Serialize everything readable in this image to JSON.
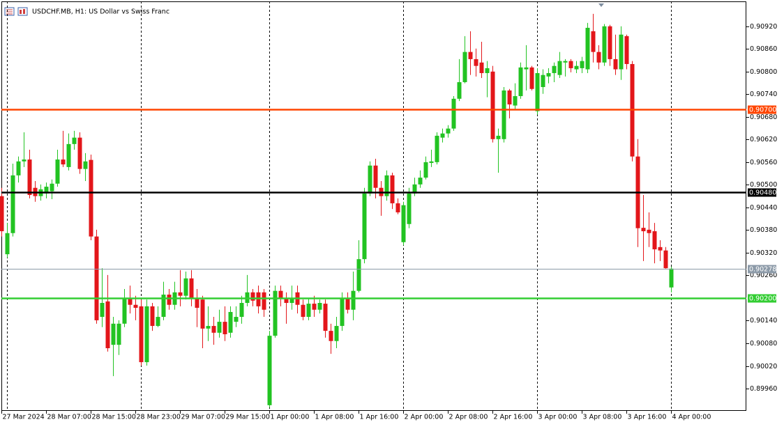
{
  "chart_data": {
    "type": "candlestick",
    "title": "USDCHF.MB, H1:  US Dollar vs Swiss Franc",
    "categories": [
      "27 Mar 2024",
      null,
      null,
      null,
      null,
      null,
      null,
      null,
      "28 Mar 07:00",
      null,
      null,
      null,
      null,
      null,
      null,
      null,
      "28 Mar 15:00",
      null,
      null,
      null,
      null,
      null,
      null,
      null,
      "28 Mar 23:00",
      null,
      null,
      null,
      null,
      null,
      null,
      null,
      "29 Mar 07:00",
      null,
      null,
      null,
      null,
      null,
      null,
      null,
      "29 Mar 15:00",
      null,
      null,
      null,
      null,
      null,
      null,
      null,
      "1 Apr 00:00",
      null,
      null,
      null,
      null,
      null,
      null,
      null,
      "1 Apr 08:00",
      null,
      null,
      null,
      null,
      null,
      null,
      null,
      "1 Apr 16:00",
      null,
      null,
      null,
      null,
      null,
      null,
      null,
      "2 Apr 00:00",
      null,
      null,
      null,
      null,
      null,
      null,
      null,
      "2 Apr 08:00",
      null,
      null,
      null,
      null,
      null,
      null,
      null,
      "2 Apr 16:00",
      null,
      null,
      null,
      null,
      null,
      null,
      null,
      "3 Apr 00:00",
      null,
      null,
      null,
      null,
      null,
      null,
      null,
      "3 Apr 08:00",
      null,
      null,
      null,
      null,
      null,
      null,
      null,
      "3 Apr 16:00",
      null,
      null,
      null,
      null,
      null,
      null,
      null,
      "4 Apr 00:00"
    ],
    "open": [
      0.9047,
      0.90316,
      0.90372,
      0.90525,
      0.90562,
      0.90567,
      0.90492,
      0.9047,
      0.90477,
      0.90483,
      0.90503,
      0.90567,
      0.90547,
      0.90608,
      0.90625,
      0.90542,
      0.90566,
      0.90363,
      0.9015,
      0.90191,
      0.90076,
      0.90076,
      0.90132,
      0.902,
      0.90182,
      0.90178,
      0.9003,
      0.90178,
      0.90126,
      0.9015,
      0.90209,
      0.90182,
      0.90215,
      0.90206,
      0.90252,
      0.902,
      0.90196,
      0.90119,
      0.90126,
      0.90108,
      0.90137,
      0.90108,
      0.90137,
      0.9015,
      0.90187,
      0.90215,
      0.90215,
      0.90215,
      0.89916,
      0.901,
      0.90219,
      0.902,
      0.90187,
      0.90215,
      0.90182,
      0.9015,
      0.90185,
      0.90169,
      0.90185,
      0.90113,
      0.90086,
      0.90126,
      0.902,
      0.90169,
      0.90219,
      0.90303,
      0.90477,
      0.90551,
      0.90492,
      0.9047,
      0.90525,
      0.90451,
      0.90348,
      0.90396,
      0.90477,
      0.90501,
      0.90519,
      0.90558,
      0.9056,
      0.90625,
      0.90636,
      0.90649,
      0.90728,
      0.90772,
      0.90852,
      0.90833,
      0.90824,
      0.90796,
      0.908,
      0.90621,
      0.90621,
      0.9075,
      0.9071,
      0.90735,
      0.90806,
      0.90811,
      0.90695,
      0.90759,
      0.90787,
      0.90796,
      0.90791,
      0.90824,
      0.90828,
      0.90806,
      0.90809,
      0.90806,
      0.90907,
      0.90852,
      0.90824,
      0.9092,
      0.90833,
      0.90806,
      0.90894,
      0.9082,
      0.90575,
      0.90386,
      0.90381,
      0.90377,
      0.90335,
      0.90326,
      0.90228
    ],
    "high": [
      0.90492,
      0.90399,
      0.90556,
      0.90575,
      0.90639,
      0.90593,
      0.9051,
      0.90501,
      0.90506,
      0.90514,
      0.90593,
      0.90643,
      0.90636,
      0.90643,
      0.90639,
      0.90584,
      0.9058,
      0.90381,
      0.90279,
      0.90261,
      0.9015,
      0.90141,
      0.90224,
      0.90233,
      0.90206,
      0.90196,
      0.90196,
      0.90187,
      0.90178,
      0.90243,
      0.90224,
      0.90243,
      0.90274,
      0.9027,
      0.90274,
      0.90224,
      0.90206,
      0.90178,
      0.9015,
      0.90169,
      0.90178,
      0.90178,
      0.90178,
      0.90206,
      0.90261,
      0.90224,
      0.90233,
      0.90224,
      0.90113,
      0.90233,
      0.90233,
      0.90215,
      0.90233,
      0.90233,
      0.90196,
      0.902,
      0.90206,
      0.90196,
      0.90196,
      0.90132,
      0.9015,
      0.90215,
      0.90215,
      0.9027,
      0.90353,
      0.90492,
      0.90562,
      0.90569,
      0.9051,
      0.90538,
      0.90532,
      0.90464,
      0.90455,
      0.90492,
      0.90519,
      0.90538,
      0.90575,
      0.90593,
      0.90639,
      0.90649,
      0.90658,
      0.90735,
      0.90833,
      0.90894,
      0.90907,
      0.90861,
      0.90879,
      0.90828,
      0.90815,
      0.90649,
      0.90759,
      0.90754,
      0.90769,
      0.90824,
      0.9087,
      0.90815,
      0.90809,
      0.90806,
      0.90809,
      0.90824,
      0.90852,
      0.90833,
      0.90833,
      0.90828,
      0.90839,
      0.90929,
      0.90953,
      0.9087,
      0.90926,
      0.90924,
      0.90898,
      0.9092,
      0.90898,
      0.90828,
      0.90621,
      0.90473,
      0.90427,
      0.90399,
      0.90353,
      0.90335,
      0.90283
    ],
    "low": [
      0.90363,
      0.90307,
      0.90363,
      0.90506,
      0.90547,
      0.90464,
      0.90455,
      0.90458,
      0.90464,
      0.90462,
      0.90495,
      0.90547,
      0.90538,
      0.90593,
      0.90529,
      0.9051,
      0.90353,
      0.90132,
      0.90123,
      0.90058,
      0.89993,
      0.90049,
      0.90123,
      0.90159,
      0.90141,
      0.90021,
      0.90021,
      0.90113,
      0.90123,
      0.90141,
      0.90169,
      0.90169,
      0.90178,
      0.90196,
      0.90178,
      0.90123,
      0.90067,
      0.90086,
      0.90076,
      0.90095,
      0.90086,
      0.90095,
      0.90123,
      0.90132,
      0.90178,
      0.90178,
      0.90159,
      0.9015,
      0.8991,
      0.90095,
      0.90178,
      0.90132,
      0.90169,
      0.90159,
      0.90141,
      0.90141,
      0.9015,
      0.90159,
      0.90095,
      0.90052,
      0.90067,
      0.90113,
      0.90159,
      0.90141,
      0.90215,
      0.90292,
      0.9047,
      0.90464,
      0.90418,
      0.90458,
      0.90436,
      0.90422,
      0.9034,
      0.90385,
      0.9047,
      0.90492,
      0.90514,
      0.90547,
      0.90554,
      0.90612,
      0.90625,
      0.90643,
      0.90722,
      0.90769,
      0.90791,
      0.90787,
      0.90783,
      0.90732,
      0.90612,
      0.90532,
      0.90612,
      0.90676,
      0.90698,
      0.90728,
      0.9075,
      0.9075,
      0.90686,
      0.90741,
      0.90769,
      0.90772,
      0.90783,
      0.90787,
      0.90798,
      0.90796,
      0.90796,
      0.90796,
      0.90824,
      0.90806,
      0.90815,
      0.90815,
      0.90791,
      0.90778,
      0.90806,
      0.90562,
      0.90335,
      0.90298,
      0.90335,
      0.90292,
      0.90298,
      0.90278,
      0.90215
    ],
    "close": [
      0.90377,
      0.90372,
      0.90525,
      0.90562,
      0.90567,
      0.90473,
      0.9047,
      0.90488,
      0.90495,
      0.90503,
      0.90567,
      0.90554,
      0.90608,
      0.90625,
      0.90542,
      0.90562,
      0.90363,
      0.90141,
      0.90187,
      0.90067,
      0.90132,
      0.90132,
      0.902,
      0.90182,
      0.90174,
      0.9003,
      0.90178,
      0.90126,
      0.9015,
      0.90209,
      0.90182,
      0.90215,
      0.90206,
      0.90252,
      0.902,
      0.90174,
      0.90119,
      0.90126,
      0.90108,
      0.90137,
      0.90104,
      0.90163,
      0.9015,
      0.90187,
      0.90215,
      0.90193,
      0.90178,
      0.90169,
      0.901,
      0.90219,
      0.902,
      0.90187,
      0.902,
      0.90182,
      0.9015,
      0.90185,
      0.90169,
      0.90187,
      0.90113,
      0.90086,
      0.90126,
      0.902,
      0.90169,
      0.90219,
      0.90303,
      0.90477,
      0.90551,
      0.90492,
      0.9047,
      0.90525,
      0.90451,
      0.90427,
      0.90446,
      0.90477,
      0.90501,
      0.90519,
      0.9056,
      0.90562,
      0.9063,
      0.90636,
      0.90649,
      0.90728,
      0.90772,
      0.90852,
      0.90833,
      0.90815,
      0.90796,
      0.90809,
      0.90621,
      0.9063,
      0.9075,
      0.90713,
      0.90735,
      0.90811,
      0.90811,
      0.90754,
      0.90796,
      0.90791,
      0.90796,
      0.90815,
      0.90828,
      0.90828,
      0.90809,
      0.90815,
      0.90828,
      0.90916,
      0.90852,
      0.90824,
      0.9092,
      0.90833,
      0.90806,
      0.90898,
      0.9082,
      0.90575,
      0.90385,
      0.90377,
      0.90372,
      0.90329,
      0.90326,
      0.90279,
      0.90278
    ],
    "up_color": "#22c322",
    "down_color": "#e3161a",
    "ylim": [
      0.89901,
      0.90986
    ],
    "yticks": [
      {
        "value": 0.8996,
        "label": "0.89960"
      },
      {
        "value": 0.9002,
        "label": "0.90020"
      },
      {
        "value": 0.9008,
        "label": "0.90080"
      },
      {
        "value": 0.9014,
        "label": "0.90140"
      },
      {
        "value": 0.9026,
        "label": "0.90260"
      },
      {
        "value": 0.9032,
        "label": "0.90320"
      },
      {
        "value": 0.9038,
        "label": "0.90380"
      },
      {
        "value": 0.9044,
        "label": "0.90440"
      },
      {
        "value": 0.905,
        "label": "0.90500"
      },
      {
        "value": 0.9056,
        "label": "0.90560"
      },
      {
        "value": 0.9062,
        "label": "0.90620"
      },
      {
        "value": 0.9068,
        "label": "0.90680"
      },
      {
        "value": 0.9074,
        "label": "0.90740"
      },
      {
        "value": 0.908,
        "label": "0.90800"
      },
      {
        "value": 0.9086,
        "label": "0.90860"
      },
      {
        "value": 0.9092,
        "label": "0.90920"
      }
    ],
    "levels": [
      {
        "value": 0.907,
        "label": "0.90700",
        "color": "#ff4500"
      },
      {
        "value": 0.9048,
        "label": "0.90480",
        "color": "#000000"
      },
      {
        "value": 0.90278,
        "label": "0.90278",
        "color": "#8c9aa8"
      },
      {
        "value": 0.902,
        "label": "0.90200",
        "color": "#32cd32"
      }
    ]
  }
}
